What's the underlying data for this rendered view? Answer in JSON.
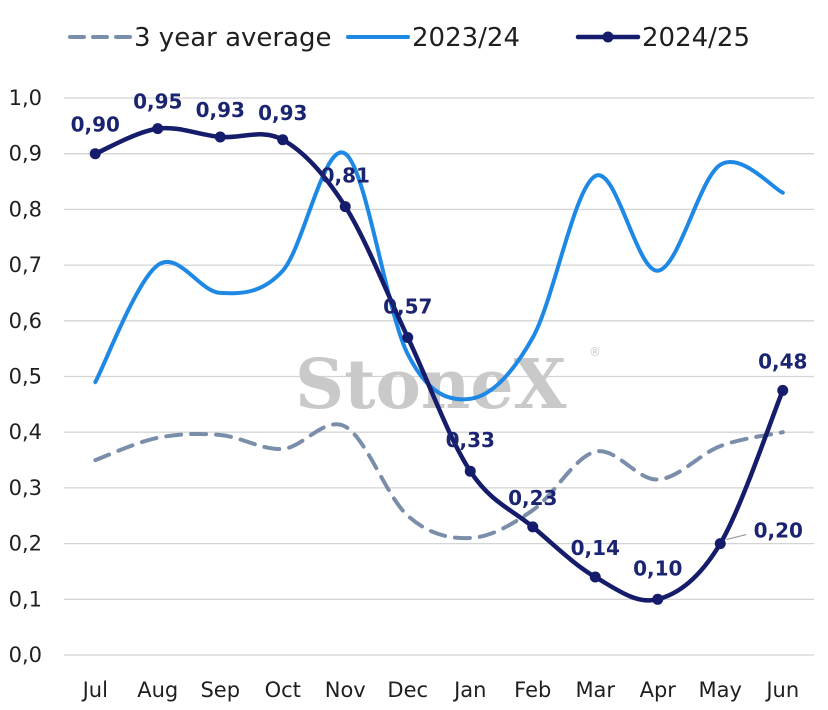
{
  "watermark": {
    "text": "StoneX",
    "mark": "®"
  },
  "chart_data": {
    "type": "line",
    "categories": [
      "Jul",
      "Aug",
      "Sep",
      "Oct",
      "Nov",
      "Dec",
      "Jan",
      "Feb",
      "Mar",
      "Apr",
      "May",
      "Jun"
    ],
    "ylim": [
      0,
      1.0
    ],
    "yticks": [
      "0,0",
      "0,1",
      "0,2",
      "0,3",
      "0,4",
      "0,5",
      "0,6",
      "0,7",
      "0,8",
      "0,9",
      "1,0"
    ],
    "grid": true,
    "legend_position": "top",
    "series": [
      {
        "name": "3 year average",
        "values": [
          0.35,
          0.39,
          0.395,
          0.37,
          0.41,
          0.25,
          0.21,
          0.26,
          0.365,
          0.315,
          0.375,
          0.4
        ],
        "color": "#7a8eaa",
        "style": "dashed",
        "markers": false
      },
      {
        "name": "2023/24",
        "values": [
          0.49,
          0.7,
          0.65,
          0.69,
          0.9,
          0.54,
          0.46,
          0.57,
          0.86,
          0.69,
          0.88,
          0.83
        ],
        "color": "#1e88e5",
        "style": "solid",
        "markers": false
      },
      {
        "name": "2024/25",
        "values": [
          0.9,
          0.945,
          0.93,
          0.925,
          0.805,
          0.57,
          0.33,
          0.23,
          0.14,
          0.1,
          0.2,
          0.475
        ],
        "labels": [
          "0,90",
          "0,95",
          "0,93",
          "0,93",
          "0,81",
          "0,57",
          "0,33",
          "0,23",
          "0,14",
          "0,10",
          "0,20",
          "0,48"
        ],
        "color": "#141c6b",
        "style": "solid",
        "markers": true
      }
    ]
  }
}
